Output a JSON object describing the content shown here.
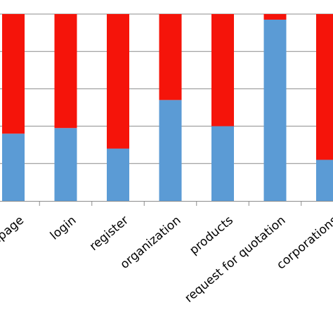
{
  "chart_data": {
    "type": "bar",
    "stacked": true,
    "percent_stacked": true,
    "categories": [
      "homepage",
      "login",
      "register",
      "organization",
      "products",
      "request for quotation",
      "corporations"
    ],
    "series": [
      {
        "color": "#5b9bd5",
        "values": [
          36,
          39,
          28,
          54,
          40,
          97,
          22
        ]
      },
      {
        "color": "#f5140a",
        "values": [
          64,
          61,
          72,
          46,
          60,
          3,
          78
        ]
      }
    ],
    "ylim": [
      0,
      100
    ],
    "grid": true,
    "title": "",
    "xlabel": "",
    "ylabel": ""
  }
}
